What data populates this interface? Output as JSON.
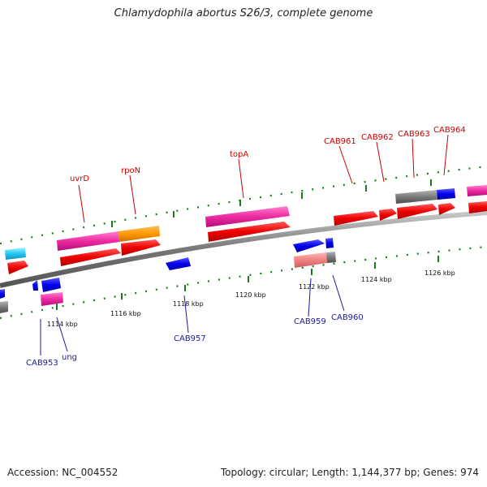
{
  "title": "Chlamydophila abortus S26/3, complete genome",
  "footer": {
    "accession": "Accession: NC_004552",
    "summary": "Topology: circular; Length: 1,144,377 bp; Genes: 974"
  },
  "colors": {
    "forward_label": "#cc0000",
    "reverse_label": "#1a1aa0",
    "backbone": "#808080",
    "tick": "#1a7a1a"
  },
  "kbp_ticks": [
    "1114 kbp",
    "1116 kbp",
    "1118 kbp",
    "1120 kbp",
    "1122 kbp",
    "1124 kbp",
    "1126 kbp"
  ],
  "forward_genes": [
    "uvrD",
    "rpoN",
    "topA",
    "CAB961",
    "CAB962",
    "CAB963",
    "CAB964"
  ],
  "reverse_genes": [
    "CAB953",
    "ung",
    "CAB957",
    "CAB959",
    "CAB960"
  ]
}
